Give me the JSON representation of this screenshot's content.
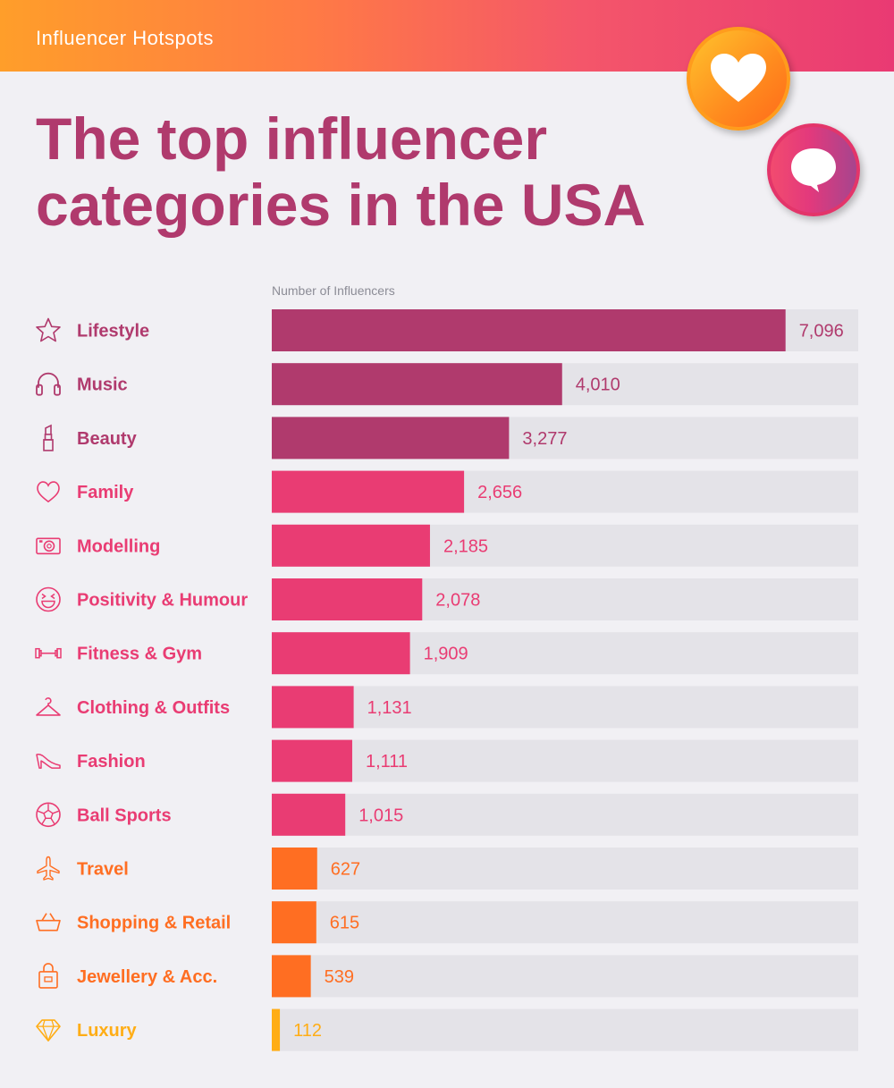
{
  "header": {
    "label": "Influencer Hotspots"
  },
  "title": "The top influencer categories in the USA",
  "badges": {
    "heart_icon": "heart-icon",
    "chat_icon": "chat-bubble-icon"
  },
  "colors": {
    "purple": "#b03a6d",
    "pink": "#e93c73",
    "orange": "#ff6e22",
    "yellow": "#ffad15",
    "track": "#e4e3e8"
  },
  "chart_data": {
    "type": "bar",
    "orientation": "horizontal",
    "title": "The top influencer categories in the USA",
    "xlabel": "Number of Influencers",
    "ylabel": "",
    "xlim": [
      0,
      8100
    ],
    "grid": false,
    "categories": [
      "Lifestyle",
      "Music",
      "Beauty",
      "Family",
      "Modelling",
      "Positivity & Humour",
      "Fitness & Gym",
      "Clothing & Outfits",
      "Fashion",
      "Ball Sports",
      "Travel",
      "Shopping & Retail",
      "Jewellery & Acc.",
      "Luxury"
    ],
    "values": [
      7096,
      4010,
      3277,
      2656,
      2185,
      2078,
      1909,
      1131,
      1111,
      1015,
      627,
      615,
      539,
      112
    ],
    "value_labels": [
      "7,096",
      "4,010",
      "3,277",
      "2,656",
      "2,185",
      "2,078",
      "1,909",
      "1,131",
      "1,111",
      "1,015",
      "627",
      "615",
      "539",
      "112"
    ],
    "color_groups": [
      "purple",
      "purple",
      "purple",
      "pink",
      "pink",
      "pink",
      "pink",
      "pink",
      "pink",
      "pink",
      "orange",
      "orange",
      "orange",
      "yellow"
    ],
    "icons": [
      "star-icon",
      "headphones-icon",
      "lipstick-icon",
      "heart-outline-icon",
      "camera-icon",
      "laughing-face-icon",
      "dumbbell-icon",
      "clothes-hanger-icon",
      "high-heel-icon",
      "soccer-ball-icon",
      "airplane-icon",
      "shopping-basket-icon",
      "handbag-icon",
      "diamond-icon"
    ]
  }
}
